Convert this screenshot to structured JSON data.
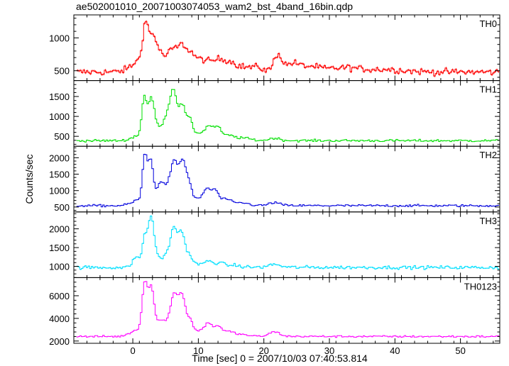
{
  "chart_data": {
    "type": "line",
    "title": "ae502001010_20071003074053_wam2_bst_4band_16bin.qdp",
    "xlabel": "Time [sec] 0 = 2007/10/03 07:40:53.814",
    "ylabel": "Counts/sec",
    "xlim": [
      -9,
      56
    ],
    "xticks": [
      0,
      10,
      20,
      30,
      40,
      50
    ],
    "grid": false,
    "legend": "none",
    "x_step": 0.25,
    "series": [
      {
        "name": "TH0",
        "color": "#ff0000",
        "ylim": [
          350,
          1350
        ],
        "yticks": [
          500,
          1000
        ],
        "baseline": 480,
        "noise": 50,
        "peaks": [
          [
            0.5,
            120,
            1.2
          ],
          [
            1.8,
            600,
            0.45
          ],
          [
            3.0,
            500,
            0.6
          ],
          [
            4.2,
            160,
            0.5
          ],
          [
            5.8,
            300,
            0.8
          ],
          [
            7.4,
            330,
            0.7
          ],
          [
            8.8,
            220,
            0.7
          ],
          [
            10.6,
            160,
            0.9
          ],
          [
            12.8,
            150,
            0.9
          ],
          [
            14.6,
            130,
            1.0
          ],
          [
            17.0,
            60,
            1.2
          ],
          [
            19.0,
            50,
            0.8
          ],
          [
            22.0,
            260,
            0.6
          ],
          [
            24.2,
            120,
            1.0
          ],
          [
            27.0,
            80,
            1.5
          ],
          [
            32.0,
            60,
            2.0
          ],
          [
            38.0,
            40,
            3.0
          ]
        ],
        "tail": [
          0,
          60,
          30,
          20
        ]
      },
      {
        "name": "TH1",
        "color": "#00e000",
        "ylim": [
          250,
          1900
        ],
        "yticks": [
          500,
          1000,
          1500
        ],
        "baseline": 390,
        "noise": 30,
        "peaks": [
          [
            0.6,
            100,
            1.0
          ],
          [
            1.6,
            950,
            0.35
          ],
          [
            2.7,
            1050,
            0.5
          ],
          [
            4.0,
            280,
            0.5
          ],
          [
            5.1,
            550,
            0.5
          ],
          [
            6.1,
            1200,
            0.5
          ],
          [
            7.4,
            850,
            0.5
          ],
          [
            8.6,
            500,
            0.5
          ],
          [
            10.0,
            160,
            0.5
          ],
          [
            11.4,
            350,
            0.6
          ],
          [
            12.8,
            320,
            0.6
          ],
          [
            14.6,
            120,
            0.8
          ],
          [
            16.8,
            60,
            1.0
          ],
          [
            21.5,
            60,
            0.8
          ]
        ],
        "tail": [
          0,
          60,
          30,
          20
        ]
      },
      {
        "name": "TH2",
        "color": "#0000dd",
        "ylim": [
          350,
          2350
        ],
        "yticks": [
          500,
          1000,
          1500,
          2000
        ],
        "baseline": 540,
        "noise": 35,
        "peaks": [
          [
            0.5,
            130,
            1.0
          ],
          [
            1.7,
            1400,
            0.35
          ],
          [
            2.6,
            1350,
            0.4
          ],
          [
            4.0,
            650,
            0.5
          ],
          [
            5.0,
            400,
            0.5
          ],
          [
            6.2,
            1300,
            0.6
          ],
          [
            7.5,
            1200,
            0.5
          ],
          [
            8.5,
            600,
            0.5
          ],
          [
            10.0,
            200,
            0.5
          ],
          [
            11.2,
            500,
            0.5
          ],
          [
            12.4,
            450,
            0.5
          ],
          [
            14.0,
            200,
            0.8
          ],
          [
            16.5,
            80,
            1.0
          ],
          [
            21.5,
            90,
            0.8
          ]
        ],
        "tail": [
          0,
          60,
          30,
          20
        ]
      },
      {
        "name": "TH3",
        "color": "#00e0ff",
        "ylim": [
          700,
          2450
        ],
        "yticks": [
          1000,
          1500,
          2000
        ],
        "baseline": 970,
        "noise": 45,
        "peaks": [
          [
            0.3,
            250,
            0.5
          ],
          [
            1.7,
            750,
            0.4
          ],
          [
            2.7,
            1300,
            0.45
          ],
          [
            3.9,
            200,
            0.5
          ],
          [
            5.0,
            300,
            0.4
          ],
          [
            6.1,
            1000,
            0.5
          ],
          [
            7.3,
            900,
            0.5
          ],
          [
            8.5,
            300,
            0.5
          ],
          [
            10.2,
            80,
            0.6
          ],
          [
            11.5,
            150,
            0.5
          ],
          [
            13.0,
            120,
            0.6
          ],
          [
            15.0,
            50,
            1.0
          ],
          [
            21.5,
            80,
            0.8
          ]
        ],
        "tail": [
          0,
          60,
          30,
          20
        ]
      },
      {
        "name": "TH0123",
        "color": "#ff00ff",
        "ylim": [
          1800,
          7600
        ],
        "yticks": [
          2000,
          4000,
          6000
        ],
        "baseline": 2400,
        "noise": 90,
        "peaks": [
          [
            0.4,
            500,
            1.0
          ],
          [
            1.7,
            4300,
            0.4
          ],
          [
            2.7,
            4200,
            0.45
          ],
          [
            4.0,
            1200,
            0.5
          ],
          [
            5.0,
            1000,
            0.5
          ],
          [
            6.2,
            3600,
            0.55
          ],
          [
            7.4,
            3400,
            0.5
          ],
          [
            8.6,
            1400,
            0.5
          ],
          [
            10.2,
            500,
            0.6
          ],
          [
            11.4,
            1100,
            0.5
          ],
          [
            12.8,
            900,
            0.6
          ],
          [
            14.5,
            400,
            0.8
          ],
          [
            16.5,
            150,
            1.0
          ],
          [
            21.5,
            400,
            0.8
          ]
        ],
        "tail": [
          0,
          60,
          30,
          20
        ]
      }
    ]
  }
}
